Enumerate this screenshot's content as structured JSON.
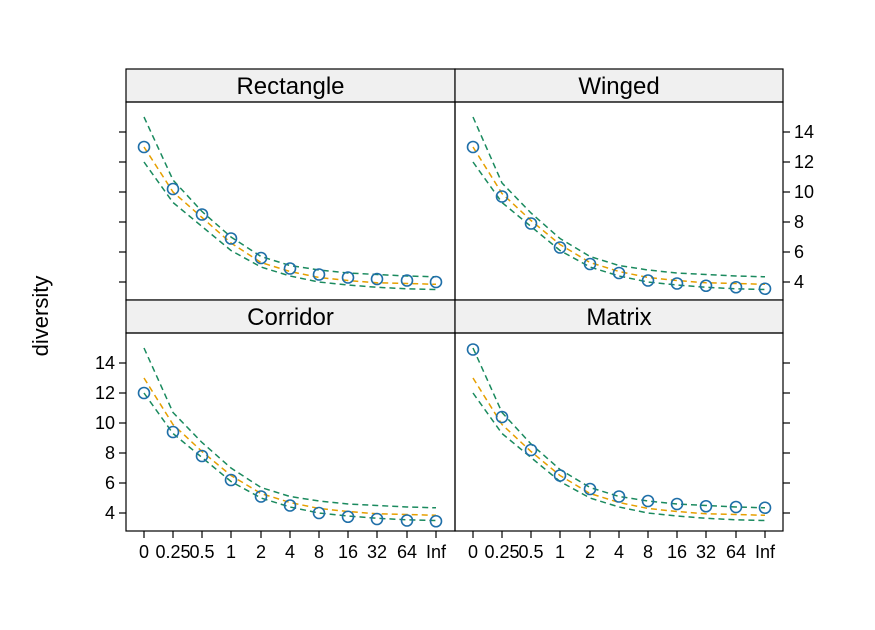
{
  "chart_data": {
    "type": "line",
    "layout": "2x2 lattice panels",
    "ylabel": "diversity",
    "xlabel": "",
    "x_categories": [
      "0",
      "0.25",
      "0.5",
      "1",
      "2",
      "4",
      "8",
      "16",
      "32",
      "64",
      "Inf"
    ],
    "ylim": [
      2.8,
      16.0
    ],
    "y_ticks": [
      4,
      6,
      8,
      10,
      12,
      14
    ],
    "grid": false,
    "colors": {
      "points": "#1f6fa8",
      "fit": "#e69f00",
      "bounds": "#1a8a5e",
      "strip_bg": "#f0f0f0"
    },
    "panels": [
      {
        "name": "Rectangle",
        "observed": [
          13.0,
          10.2,
          8.5,
          6.9,
          5.6,
          4.9,
          4.5,
          4.3,
          4.2,
          4.1,
          4.0
        ],
        "fit": [
          13.0,
          10.0,
          8.3,
          6.6,
          5.3,
          4.7,
          4.3,
          4.1,
          3.95,
          3.9,
          3.85
        ],
        "upper": [
          15.0,
          10.8,
          8.7,
          7.0,
          5.7,
          5.1,
          4.8,
          4.6,
          4.5,
          4.4,
          4.35
        ],
        "lower": [
          12.0,
          9.3,
          7.7,
          6.1,
          5.0,
          4.4,
          4.0,
          3.8,
          3.65,
          3.55,
          3.5
        ]
      },
      {
        "name": "Winged",
        "observed": [
          13.0,
          9.7,
          7.9,
          6.3,
          5.2,
          4.6,
          4.1,
          3.9,
          3.75,
          3.65,
          3.55
        ],
        "fit": [
          13.0,
          9.9,
          8.1,
          6.5,
          5.3,
          4.7,
          4.3,
          4.1,
          3.95,
          3.9,
          3.85
        ],
        "upper": [
          15.0,
          10.6,
          8.6,
          6.9,
          5.7,
          5.1,
          4.8,
          4.6,
          4.5,
          4.4,
          4.35
        ],
        "lower": [
          12.0,
          9.3,
          7.7,
          6.1,
          5.0,
          4.4,
          4.0,
          3.8,
          3.65,
          3.55,
          3.5
        ]
      },
      {
        "name": "Corridor",
        "observed": [
          12.0,
          9.4,
          7.8,
          6.2,
          5.1,
          4.5,
          4.0,
          3.75,
          3.6,
          3.5,
          3.45
        ],
        "fit": [
          13.0,
          9.9,
          8.1,
          6.5,
          5.3,
          4.7,
          4.3,
          4.1,
          3.95,
          3.9,
          3.85
        ],
        "upper": [
          15.0,
          10.7,
          8.7,
          7.0,
          5.7,
          5.1,
          4.8,
          4.6,
          4.5,
          4.4,
          4.35
        ],
        "lower": [
          12.0,
          9.3,
          7.7,
          6.1,
          5.0,
          4.4,
          4.0,
          3.8,
          3.65,
          3.55,
          3.5
        ]
      },
      {
        "name": "Matrix",
        "observed": [
          14.9,
          10.4,
          8.2,
          6.5,
          5.6,
          5.1,
          4.8,
          4.6,
          4.45,
          4.4,
          4.35
        ],
        "fit": [
          13.0,
          9.9,
          8.1,
          6.5,
          5.3,
          4.7,
          4.3,
          4.1,
          3.95,
          3.9,
          3.85
        ],
        "upper": [
          15.0,
          10.7,
          8.6,
          6.9,
          5.7,
          5.1,
          4.8,
          4.6,
          4.5,
          4.4,
          4.35
        ],
        "lower": [
          12.0,
          9.3,
          7.7,
          6.1,
          5.0,
          4.4,
          4.0,
          3.8,
          3.65,
          3.55,
          3.5
        ]
      }
    ]
  }
}
